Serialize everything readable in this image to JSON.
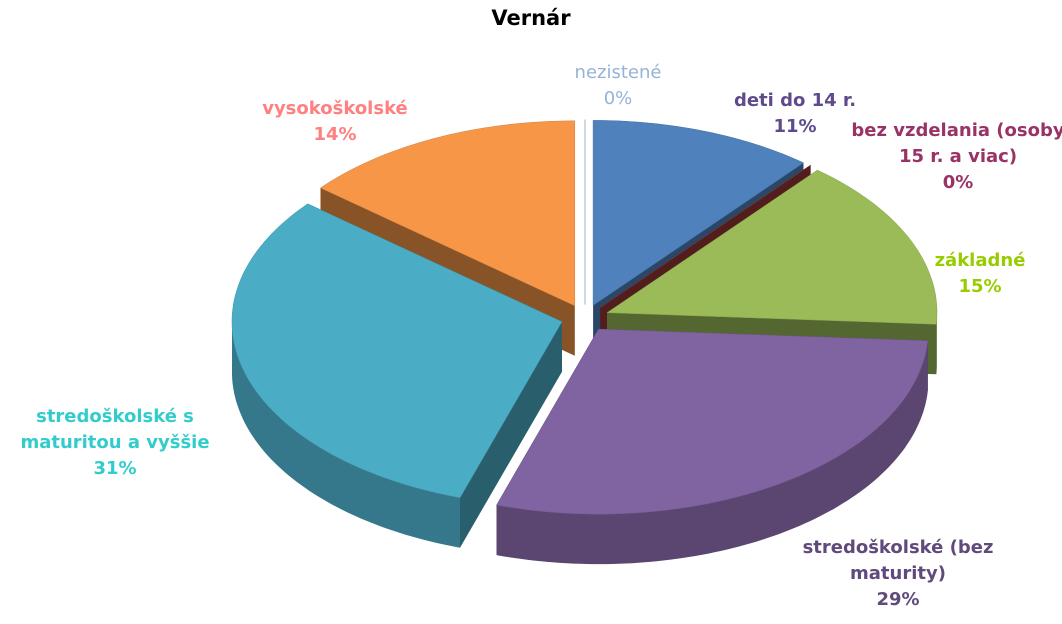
{
  "chart_data": {
    "type": "pie",
    "title": "Vernár",
    "categories": [
      "deti do 14 r.",
      "bez vzdelania (osoby 15 r. a viac)",
      "základné",
      "stredoškolské (bez maturity)",
      "stredoškolské s maturitou a vyššie",
      "vysokoškolské",
      "nezistené"
    ],
    "values": [
      11,
      0,
      15,
      29,
      31,
      14,
      0
    ],
    "value_labels": [
      "11%",
      "0%",
      "15%",
      "29%",
      "31%",
      "14%",
      "0%"
    ],
    "colors": [
      "#4f81bd",
      "#953735",
      "#9bbb59",
      "#8064a2",
      "#4bacc6",
      "#f79646",
      "#95b3d7"
    ],
    "label_colors": [
      "#5f4b8b",
      "#993366",
      "#99cc00",
      "#604a7b",
      "#33cccc",
      "#ff8080",
      "#95b3d7"
    ],
    "three_d": true,
    "exploded": true
  }
}
